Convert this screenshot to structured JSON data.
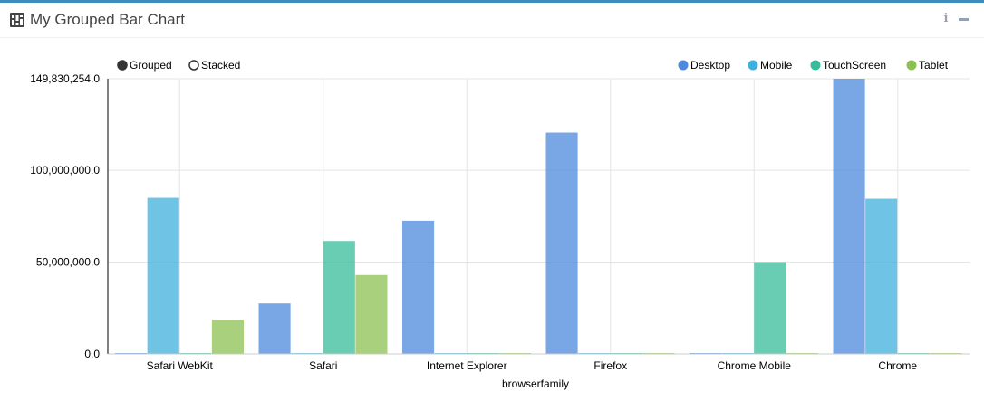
{
  "widget": {
    "title": "My Grouped Bar Chart",
    "title_icon": "bar-chart-icon",
    "tools": [
      {
        "name": "info-icon",
        "glyph": "i"
      },
      {
        "name": "minimize-icon",
        "glyph": "–"
      }
    ]
  },
  "controls": {
    "grouped_label": "Grouped",
    "stacked_label": "Stacked",
    "selected": "Grouped"
  },
  "chart_data": {
    "type": "bar",
    "mode": "grouped",
    "categories": [
      "Safari WebKit",
      "Safari",
      "Internet Explorer",
      "Firefox",
      "Chrome Mobile",
      "Chrome"
    ],
    "series": [
      {
        "name": "Desktop",
        "color": "#4c89dc",
        "values": [
          0,
          27500000,
          72500000,
          120500000,
          0,
          149830254
        ]
      },
      {
        "name": "Mobile",
        "color": "#3fb0de",
        "values": [
          85000000,
          0,
          0,
          0,
          0,
          84500000
        ]
      },
      {
        "name": "TouchScreen",
        "color": "#37bc9b",
        "values": [
          0,
          61500000,
          0,
          0,
          50000000,
          0
        ]
      },
      {
        "name": "Tablet",
        "color": "#8cc152",
        "values": [
          18500000,
          43000000,
          0,
          0,
          0,
          0
        ]
      }
    ],
    "xlabel": "browserfamily",
    "ylabel": "",
    "ylim": [
      0,
      149830254
    ],
    "yticks": [
      0,
      50000000,
      100000000,
      149830254
    ],
    "ytick_labels": [
      "0.0",
      "50,000,000.0",
      "100,000,000.0",
      "149,830,254.0"
    ],
    "legend_position": "top-right",
    "grid": true
  }
}
